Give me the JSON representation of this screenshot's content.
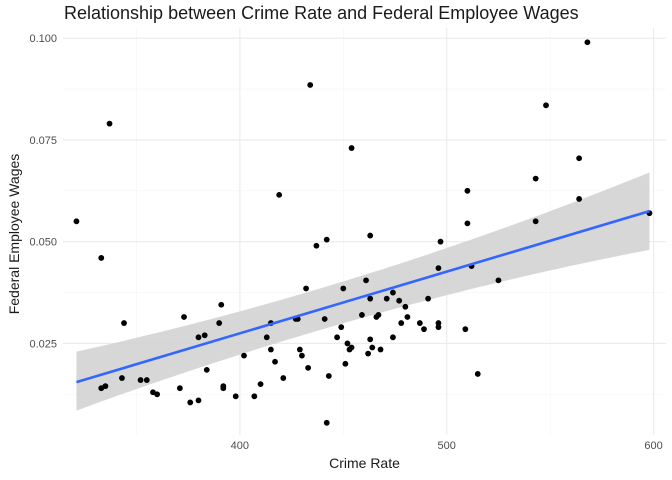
{
  "chart_data": {
    "type": "scatter",
    "title": "Relationship between Crime Rate and Federal Employee Wages",
    "xlabel": "Crime Rate",
    "ylabel": "Federal Employee Wages",
    "xlim": [
      314.5,
      606
    ],
    "ylim": [
      0.0025,
      0.1025
    ],
    "x_ticks": [
      400,
      500,
      600
    ],
    "x_tick_labels": [
      "400",
      "500",
      "600"
    ],
    "x_minor_ticks": [
      350,
      450,
      550
    ],
    "y_ticks": [
      0.025,
      0.05,
      0.075,
      0.1
    ],
    "y_tick_labels": [
      "0.025",
      "0.050",
      "0.075",
      "0.100"
    ],
    "y_minor_ticks": [
      0.0125,
      0.0375,
      0.0625,
      0.0875
    ],
    "grid": true,
    "colors": {
      "points": "#000000",
      "fit_line": "#3366ff",
      "ribbon": "#d3d3d3",
      "grid_major": "#ebebeb",
      "grid_minor": "#f5f5f5"
    },
    "points": [
      [
        321,
        0.055
      ],
      [
        333,
        0.046
      ],
      [
        333,
        0.014
      ],
      [
        335,
        0.0145
      ],
      [
        337,
        0.079
      ],
      [
        343,
        0.0165
      ],
      [
        344,
        0.03
      ],
      [
        352,
        0.016
      ],
      [
        355,
        0.016
      ],
      [
        358,
        0.013
      ],
      [
        360,
        0.0125
      ],
      [
        371,
        0.014
      ],
      [
        373,
        0.0315
      ],
      [
        376,
        0.0105
      ],
      [
        380,
        0.011
      ],
      [
        380,
        0.0265
      ],
      [
        383,
        0.027
      ],
      [
        384,
        0.0185
      ],
      [
        390,
        0.03
      ],
      [
        391,
        0.0345
      ],
      [
        392,
        0.0145
      ],
      [
        392,
        0.014
      ],
      [
        398,
        0.012
      ],
      [
        402,
        0.022
      ],
      [
        407,
        0.012
      ],
      [
        410,
        0.015
      ],
      [
        413,
        0.0265
      ],
      [
        415,
        0.03
      ],
      [
        415,
        0.0235
      ],
      [
        417,
        0.0205
      ],
      [
        419,
        0.0615
      ],
      [
        421,
        0.0165
      ],
      [
        427,
        0.031
      ],
      [
        428,
        0.031
      ],
      [
        429,
        0.0235
      ],
      [
        430,
        0.022
      ],
      [
        432,
        0.0385
      ],
      [
        433,
        0.019
      ],
      [
        434,
        0.0885
      ],
      [
        437,
        0.049
      ],
      [
        441,
        0.031
      ],
      [
        442,
        0.0505
      ],
      [
        442,
        0.0055
      ],
      [
        443,
        0.017
      ],
      [
        447,
        0.0265
      ],
      [
        449,
        0.029
      ],
      [
        450,
        0.0385
      ],
      [
        451,
        0.02
      ],
      [
        452,
        0.025
      ],
      [
        453,
        0.0235
      ],
      [
        454,
        0.073
      ],
      [
        454,
        0.024
      ],
      [
        459,
        0.032
      ],
      [
        461,
        0.0405
      ],
      [
        462,
        0.0225
      ],
      [
        463,
        0.0515
      ],
      [
        463,
        0.036
      ],
      [
        463,
        0.026
      ],
      [
        464,
        0.024
      ],
      [
        466,
        0.0315
      ],
      [
        467,
        0.032
      ],
      [
        468,
        0.0235
      ],
      [
        471,
        0.036
      ],
      [
        474,
        0.0375
      ],
      [
        474,
        0.0265
      ],
      [
        477,
        0.0355
      ],
      [
        478,
        0.03
      ],
      [
        480,
        0.034
      ],
      [
        481,
        0.0315
      ],
      [
        487,
        0.03
      ],
      [
        489,
        0.0285
      ],
      [
        491,
        0.036
      ],
      [
        496,
        0.0435
      ],
      [
        496,
        0.029
      ],
      [
        496,
        0.03
      ],
      [
        497,
        0.05
      ],
      [
        509,
        0.0285
      ],
      [
        510,
        0.0545
      ],
      [
        510,
        0.0625
      ],
      [
        512,
        0.044
      ],
      [
        515,
        0.0175
      ],
      [
        525,
        0.0405
      ],
      [
        543,
        0.0655
      ],
      [
        543,
        0.055
      ],
      [
        548,
        0.0835
      ],
      [
        564,
        0.0705
      ],
      [
        564,
        0.0605
      ],
      [
        568,
        0.099
      ],
      [
        598,
        0.057
      ]
    ],
    "fit": {
      "method": "lm",
      "x": [
        321,
        598
      ],
      "y": [
        0.0155,
        0.0575
      ],
      "ci_lower": [
        0.0085,
        0.048
      ],
      "ci_upper": [
        0.023,
        0.067
      ],
      "ci_mid_x": 460,
      "ci_mid_lower": [
        0.0345,
        0.0345
      ],
      "ci_mid_upper": [
        0.0385,
        0.0385
      ]
    }
  }
}
